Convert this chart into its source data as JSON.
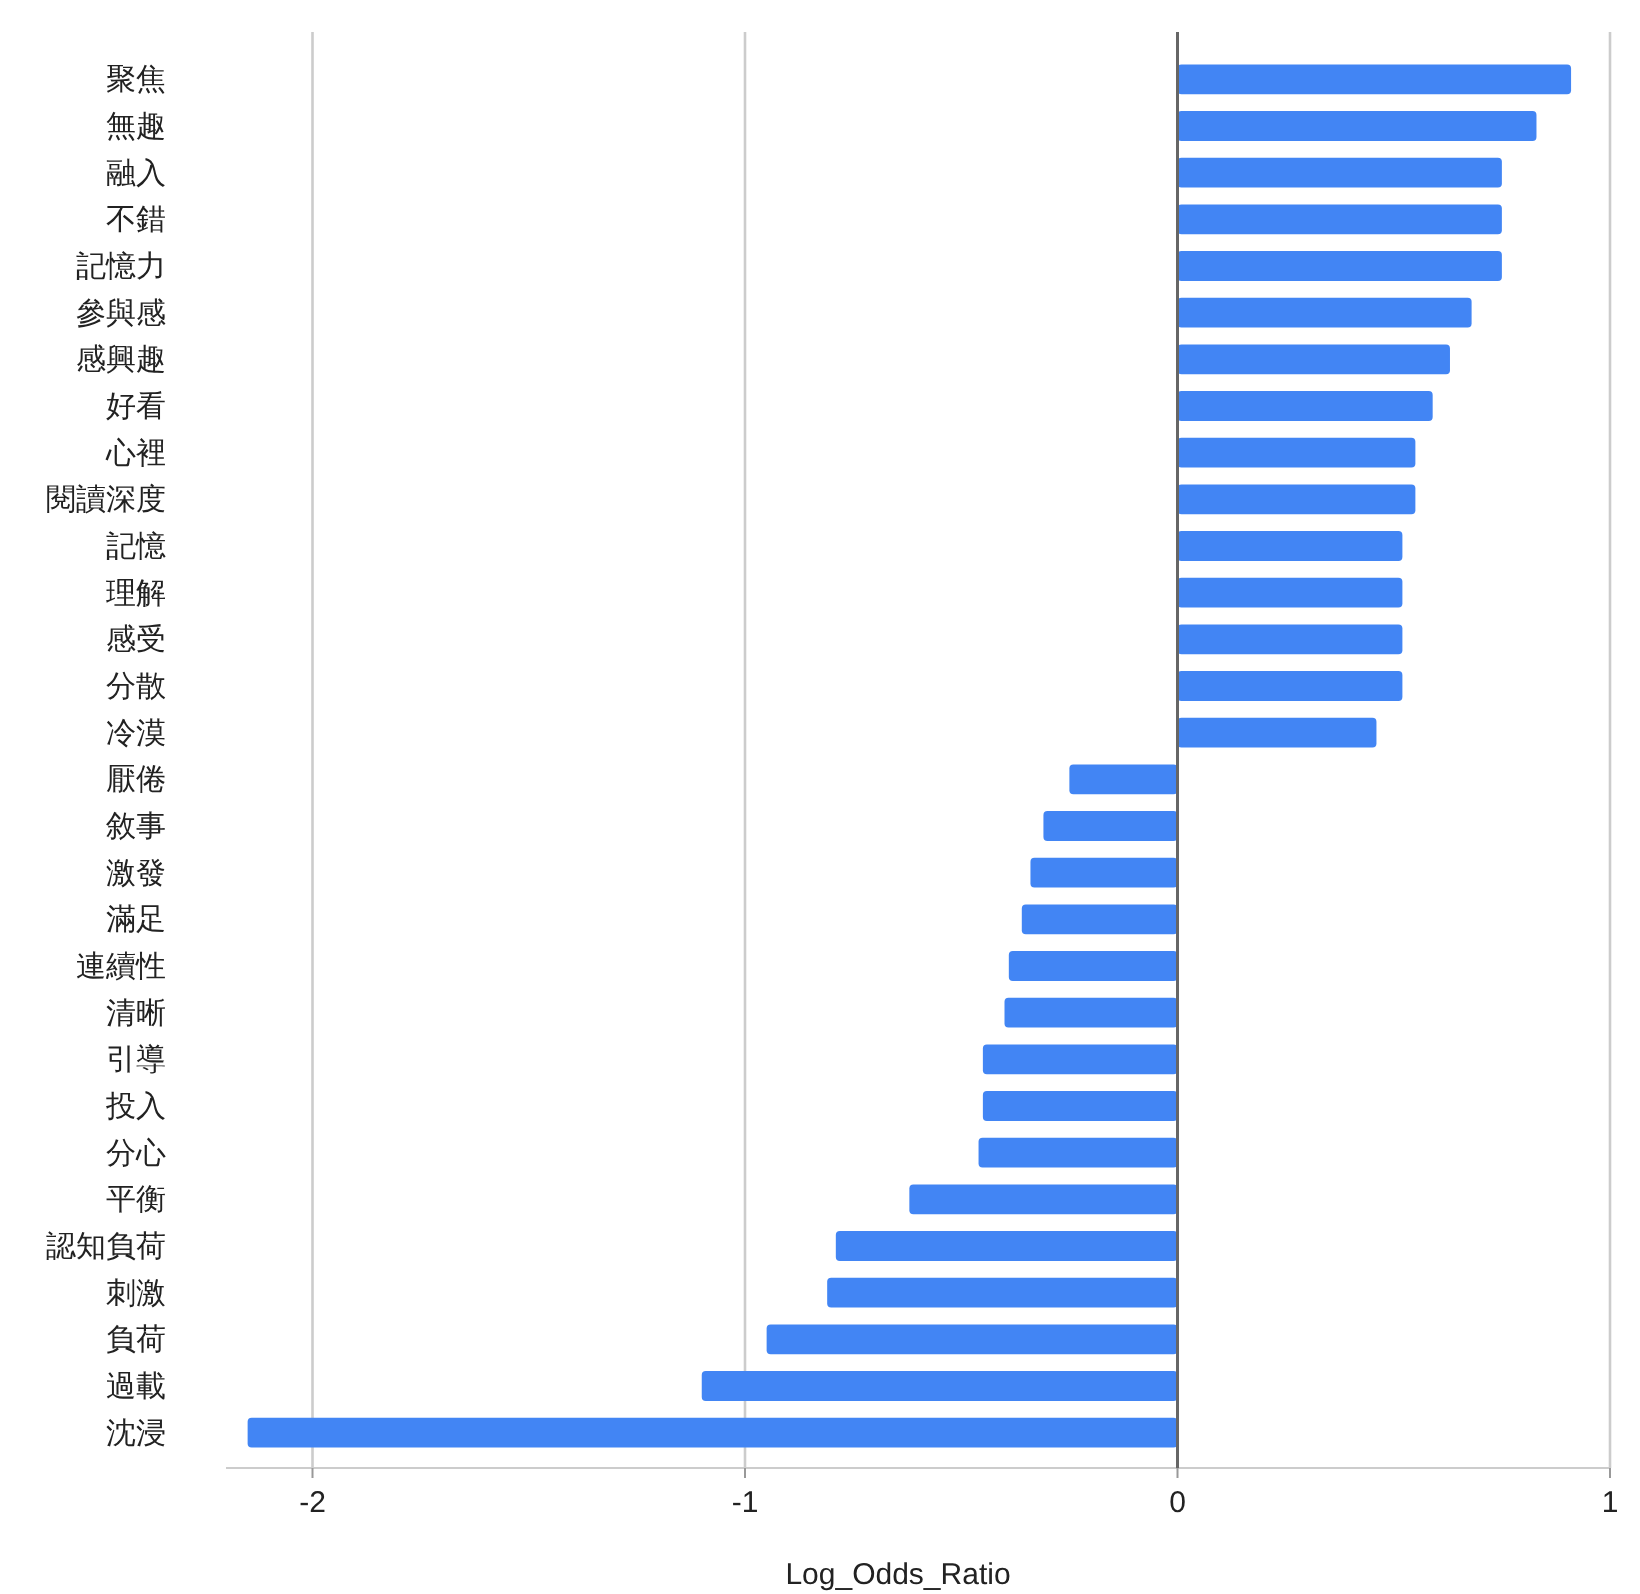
{
  "chart_data": {
    "type": "bar",
    "orientation": "horizontal",
    "xlabel": "Log_Odds_Ratio",
    "categories": [
      "聚焦",
      "無趣",
      "融入",
      "不錯",
      "記憶力",
      "參與感",
      "感興趣",
      "好看",
      "心裡",
      "閱讀深度",
      "記憶",
      "理解",
      "感受",
      "分散",
      "冷漠",
      "厭倦",
      "敘事",
      "激發",
      "滿足",
      "連續性",
      "清晰",
      "引導",
      "投入",
      "分心",
      "平衡",
      "認知負荷",
      "刺激",
      "負荷",
      "過載",
      "沈浸"
    ],
    "values": [
      0.91,
      0.83,
      0.75,
      0.75,
      0.75,
      0.68,
      0.63,
      0.59,
      0.55,
      0.55,
      0.52,
      0.52,
      0.52,
      0.52,
      0.46,
      -0.25,
      -0.31,
      -0.34,
      -0.36,
      -0.39,
      -0.4,
      -0.45,
      -0.45,
      -0.46,
      -0.62,
      -0.79,
      -0.81,
      -0.95,
      -1.1,
      -2.15
    ],
    "color": "#4285f4",
    "xlim": [
      -2.2,
      1
    ],
    "xticks": [
      -2,
      -1,
      0,
      1
    ],
    "grid": "x"
  }
}
